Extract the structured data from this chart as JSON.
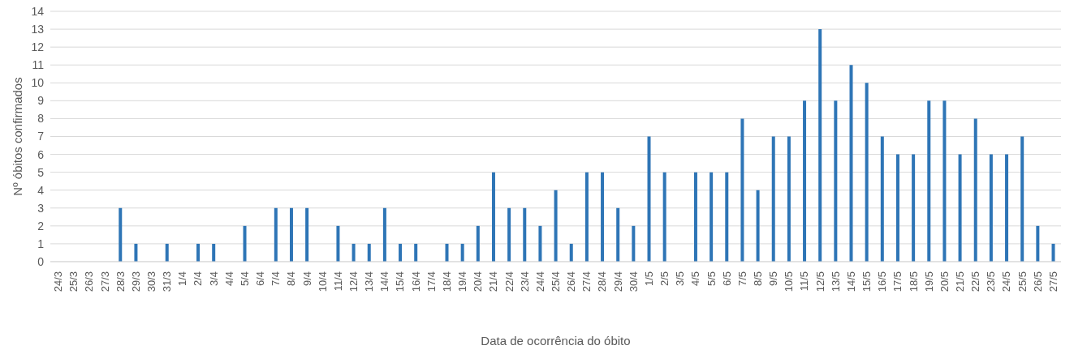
{
  "chart_data": {
    "type": "bar",
    "xlabel": "Data de ocorrência do óbito",
    "ylabel": "Nº óbitos confirmados",
    "categories": [
      "24/3",
      "25/3",
      "26/3",
      "27/3",
      "28/3",
      "29/3",
      "30/3",
      "31/3",
      "1/4",
      "2/4",
      "3/4",
      "4/4",
      "5/4",
      "6/4",
      "7/4",
      "8/4",
      "9/4",
      "10/4",
      "11/4",
      "12/4",
      "13/4",
      "14/4",
      "15/4",
      "16/4",
      "17/4",
      "18/4",
      "19/4",
      "20/4",
      "21/4",
      "22/4",
      "23/4",
      "24/4",
      "25/4",
      "26/4",
      "27/4",
      "28/4",
      "29/4",
      "30/4",
      "1/5",
      "2/5",
      "3/5",
      "4/5",
      "5/5",
      "6/5",
      "7/5",
      "8/5",
      "9/5",
      "10/5",
      "11/5",
      "12/5",
      "13/5",
      "14/5",
      "15/5",
      "16/5",
      "17/5",
      "18/5",
      "19/5",
      "20/5",
      "21/5",
      "22/5",
      "23/5",
      "24/5",
      "25/5",
      "26/5",
      "27/5"
    ],
    "values": [
      0,
      0,
      0,
      0,
      3,
      1,
      0,
      1,
      0,
      1,
      1,
      0,
      2,
      0,
      3,
      3,
      3,
      0,
      2,
      1,
      1,
      3,
      1,
      1,
      0,
      1,
      1,
      2,
      5,
      3,
      3,
      2,
      4,
      1,
      5,
      5,
      3,
      2,
      7,
      5,
      0,
      5,
      5,
      5,
      8,
      4,
      7,
      7,
      9,
      13,
      9,
      11,
      10,
      7,
      6,
      6,
      9,
      9,
      6,
      8,
      6,
      6,
      7,
      2,
      1
    ],
    "color": "#2e75b6",
    "ylim": [
      0,
      14
    ],
    "yticks": [
      0,
      1,
      2,
      3,
      4,
      5,
      6,
      7,
      8,
      9,
      10,
      11,
      12,
      13,
      14
    ],
    "grid": "y",
    "legend": false
  }
}
